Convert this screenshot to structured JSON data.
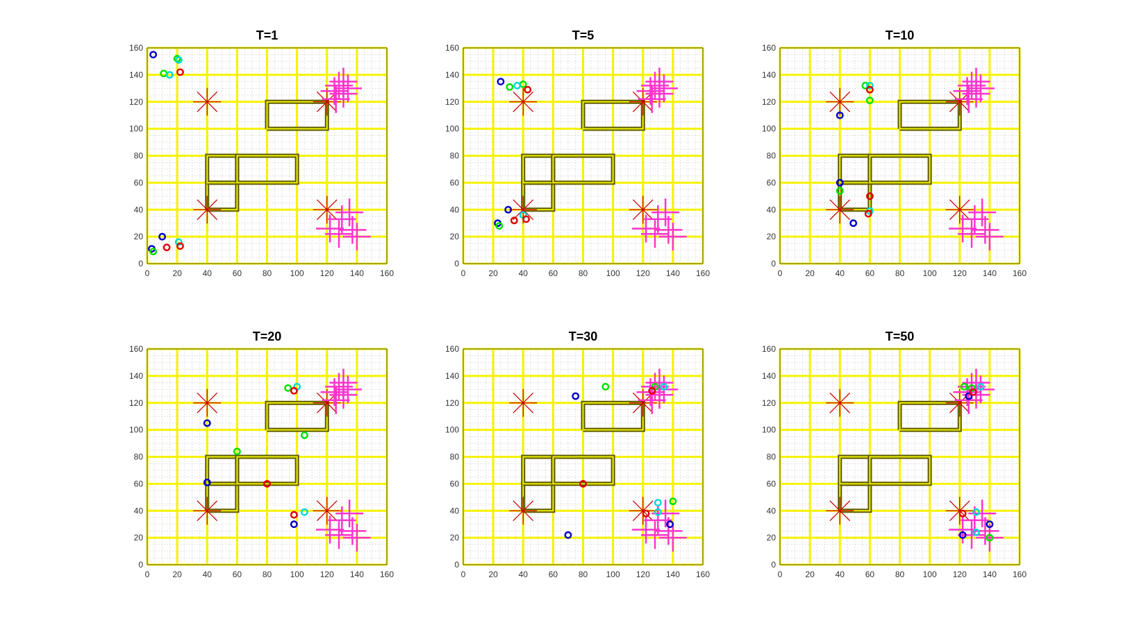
{
  "chart_data": {
    "type": "scatter",
    "xlim": [
      0,
      160
    ],
    "ylim": [
      0,
      160
    ],
    "xticks": [
      0,
      20,
      40,
      60,
      80,
      100,
      120,
      140,
      160
    ],
    "yticks": [
      0,
      20,
      40,
      60,
      80,
      100,
      120,
      140,
      160
    ],
    "minor_grid": true,
    "colors": {
      "grid_major": "#f5f200",
      "grid_minor": "#c8c8c8",
      "obstacle": "#5a5a00",
      "target": "#cc0000",
      "destination": "#ff33cc",
      "axes": "#333333"
    },
    "environment": {
      "targets": [
        [
          40,
          120
        ],
        [
          120,
          120
        ],
        [
          40,
          40
        ],
        [
          120,
          40
        ]
      ],
      "obstacles": [
        [
          [
            80,
            100
          ],
          [
            120,
            100
          ],
          [
            120,
            120
          ],
          [
            80,
            120
          ],
          [
            80,
            100
          ]
        ],
        [
          [
            40,
            40
          ],
          [
            60,
            40
          ],
          [
            60,
            60
          ],
          [
            40,
            60
          ],
          [
            40,
            40
          ]
        ],
        [
          [
            40,
            60
          ],
          [
            60,
            60
          ],
          [
            60,
            80
          ],
          [
            40,
            80
          ],
          [
            40,
            60
          ]
        ],
        [
          [
            60,
            60
          ],
          [
            100,
            60
          ],
          [
            100,
            80
          ],
          [
            60,
            80
          ],
          [
            60,
            60
          ]
        ]
      ],
      "destinations": [
        [
          125,
          128
        ],
        [
          128,
          132
        ],
        [
          131,
          126
        ],
        [
          134,
          130
        ],
        [
          126,
          122
        ],
        [
          131,
          135
        ],
        [
          122,
          26
        ],
        [
          130,
          33
        ],
        [
          137,
          25
        ],
        [
          140,
          20
        ],
        [
          128,
          22
        ],
        [
          135,
          38
        ]
      ]
    },
    "panels": [
      {
        "title": "T=1",
        "agents": [
          {
            "color": "#0000c8",
            "points": [
              [
                4,
                155
              ],
              [
                10,
                20
              ],
              [
                3,
                11
              ]
            ]
          },
          {
            "color": "#00e000",
            "points": [
              [
                20,
                152
              ],
              [
                11,
                141
              ],
              [
                4,
                9
              ]
            ]
          },
          {
            "color": "#00d8d8",
            "points": [
              [
                21,
                151
              ],
              [
                15,
                140
              ],
              [
                21,
                16
              ]
            ]
          },
          {
            "color": "#e00000",
            "points": [
              [
                22,
                142
              ],
              [
                13,
                12
              ],
              [
                22,
                13
              ]
            ]
          }
        ]
      },
      {
        "title": "T=5",
        "agents": [
          {
            "color": "#0000c8",
            "points": [
              [
                25,
                135
              ],
              [
                30,
                40
              ],
              [
                23,
                30
              ]
            ]
          },
          {
            "color": "#00e000",
            "points": [
              [
                31,
                131
              ],
              [
                40,
                133
              ],
              [
                24,
                28
              ]
            ]
          },
          {
            "color": "#00d8d8",
            "points": [
              [
                36,
                132
              ],
              [
                40,
                36
              ]
            ]
          },
          {
            "color": "#e00000",
            "points": [
              [
                43,
                129
              ],
              [
                34,
                32
              ],
              [
                42,
                33
              ]
            ]
          }
        ]
      },
      {
        "title": "T=10",
        "agents": [
          {
            "color": "#0000c8",
            "points": [
              [
                40,
                110
              ],
              [
                40,
                60
              ],
              [
                49,
                30
              ]
            ]
          },
          {
            "color": "#00e000",
            "points": [
              [
                57,
                132
              ],
              [
                60,
                121
              ],
              [
                40,
                54
              ]
            ]
          },
          {
            "color": "#00d8d8",
            "points": [
              [
                60,
                132
              ],
              [
                60,
                39
              ]
            ]
          },
          {
            "color": "#e00000",
            "points": [
              [
                60,
                129
              ],
              [
                60,
                50
              ],
              [
                59,
                37
              ]
            ]
          }
        ]
      },
      {
        "title": "T=20",
        "agents": [
          {
            "color": "#0000c8",
            "points": [
              [
                40,
                105
              ],
              [
                40,
                61
              ],
              [
                98,
                30
              ]
            ]
          },
          {
            "color": "#00e000",
            "points": [
              [
                94,
                131
              ],
              [
                105,
                96
              ],
              [
                60,
                84
              ]
            ]
          },
          {
            "color": "#00d8d8",
            "points": [
              [
                100,
                132
              ],
              [
                105,
                39
              ]
            ]
          },
          {
            "color": "#e00000",
            "points": [
              [
                98,
                129
              ],
              [
                80,
                60
              ],
              [
                98,
                37
              ]
            ]
          }
        ]
      },
      {
        "title": "T=30",
        "agents": [
          {
            "color": "#0000c8",
            "points": [
              [
                75,
                125
              ],
              [
                70,
                22
              ],
              [
                138,
                30
              ]
            ]
          },
          {
            "color": "#00e000",
            "points": [
              [
                95,
                132
              ],
              [
                128,
                132
              ],
              [
                140,
                47
              ]
            ]
          },
          {
            "color": "#00d8d8",
            "points": [
              [
                134,
                132
              ],
              [
                130,
                46
              ],
              [
                130,
                39
              ]
            ]
          },
          {
            "color": "#e00000",
            "points": [
              [
                126,
                129
              ],
              [
                80,
                60
              ],
              [
                122,
                38
              ]
            ]
          }
        ]
      },
      {
        "title": "T=50",
        "agents": [
          {
            "color": "#0000c8",
            "points": [
              [
                126,
                125
              ],
              [
                122,
                22
              ],
              [
                140,
                30
              ]
            ]
          },
          {
            "color": "#00e000",
            "points": [
              [
                123,
                132
              ],
              [
                128,
                131
              ],
              [
                140,
                20
              ]
            ]
          },
          {
            "color": "#00d8d8",
            "points": [
              [
                134,
                132
              ],
              [
                131,
                39
              ],
              [
                131,
                24
              ]
            ]
          },
          {
            "color": "#e00000",
            "points": [
              [
                129,
                128
              ],
              [
                122,
                38
              ]
            ]
          }
        ]
      }
    ]
  }
}
